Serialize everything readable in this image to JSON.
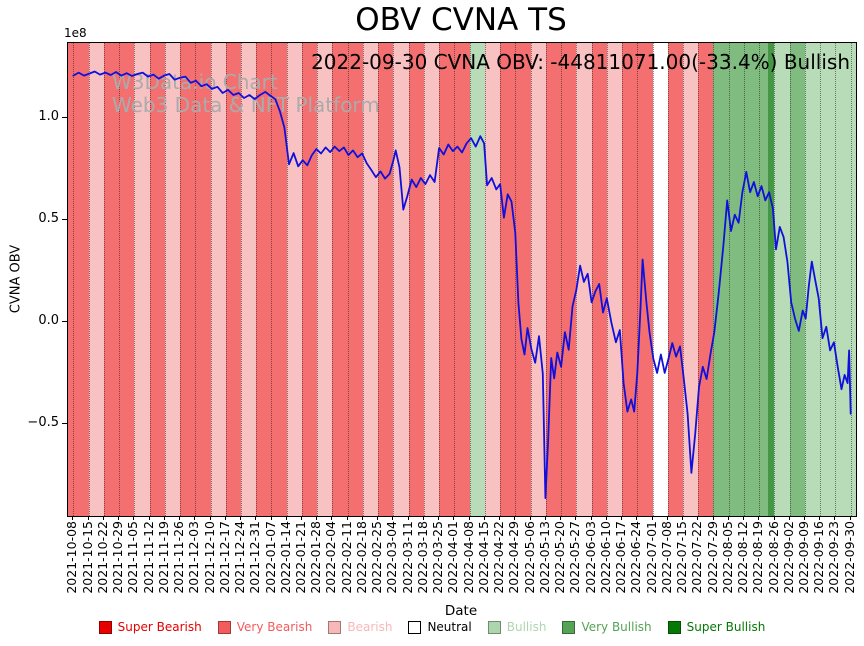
{
  "chart_data": {
    "type": "line",
    "title": "OBV CVNA TS",
    "annotation": "2022-09-30 CVNA OBV: -44811071.00(-33.4%) Bullish",
    "watermark": [
      "W3Data.io Chart",
      "Web3 Data & NFT Platform"
    ],
    "xlabel": "Date",
    "ylabel": "CVNA OBV",
    "y_offset_label": "1e8",
    "line_color": "#1010dc",
    "xlim": [
      -0.35,
      51.35
    ],
    "ylim": [
      -0.95,
      1.37
    ],
    "yticks": [
      {
        "v": 1.0,
        "label": "1.0"
      },
      {
        "v": 0.5,
        "label": "0.5"
      },
      {
        "v": 0.0,
        "label": "0.0"
      },
      {
        "v": -0.5,
        "label": "−0.5"
      }
    ],
    "x_tick_labels": [
      "2021-10-08",
      "2021-10-15",
      "2021-10-22",
      "2021-10-29",
      "2021-11-05",
      "2021-11-12",
      "2021-11-19",
      "2021-11-26",
      "2021-12-03",
      "2021-12-10",
      "2021-12-17",
      "2021-12-24",
      "2021-12-31",
      "2022-01-07",
      "2022-01-14",
      "2022-01-21",
      "2022-01-28",
      "2022-02-04",
      "2022-02-11",
      "2022-02-18",
      "2022-02-25",
      "2022-03-04",
      "2022-03-11",
      "2022-03-18",
      "2022-03-25",
      "2022-04-01",
      "2022-04-08",
      "2022-04-15",
      "2022-04-22",
      "2022-04-29",
      "2022-05-06",
      "2022-05-13",
      "2022-05-20",
      "2022-05-27",
      "2022-06-03",
      "2022-06-10",
      "2022-06-17",
      "2022-06-24",
      "2022-07-01",
      "2022-07-08",
      "2022-07-15",
      "2022-07-22",
      "2022-07-29",
      "2022-08-05",
      "2022-08-12",
      "2022-08-19",
      "2022-08-26",
      "2022-09-02",
      "2022-09-09",
      "2022-09-16",
      "2022-09-23",
      "2022-09-30"
    ],
    "band_colors": {
      "vb": "#f47070",
      "b": "#f9c2c2",
      "n": "#ffffff",
      "bu": "#b7dcb7",
      "vbu": "#80bc80",
      "sbu": "#459745"
    },
    "bands": {
      "weekly": [
        "vb",
        "b",
        "vb",
        "vb",
        "b",
        "vb",
        "b",
        "vb",
        "vb",
        "b",
        "vb",
        "b",
        "vb",
        "vb",
        "b",
        "vb",
        "b",
        "vb",
        "vb",
        "b",
        "vb",
        "b",
        "vb",
        "b",
        "vb",
        "vb",
        "bu",
        "b",
        "vb",
        "vb",
        "b",
        "vb",
        "vb",
        "b",
        "vb",
        "b",
        "vb",
        "vb",
        "n",
        "vb",
        "b",
        "vb",
        "vbu",
        "vbu",
        "vbu",
        "vbu",
        "bu",
        "vbu",
        "bu",
        "bu",
        "bu"
      ],
      "extra": [
        {
          "x0": -0.35,
          "x1": 0,
          "c": "vb"
        },
        {
          "x0": 51,
          "x1": 51.35,
          "c": "bu"
        },
        {
          "x0": 45.6,
          "x1": 46.0,
          "c": "sbu"
        }
      ]
    },
    "points": [
      [
        0,
        1.21
      ],
      [
        0.35,
        1.225
      ],
      [
        0.7,
        1.21
      ],
      [
        1.05,
        1.22
      ],
      [
        1.4,
        1.23
      ],
      [
        1.75,
        1.215
      ],
      [
        2.1,
        1.225
      ],
      [
        2.45,
        1.213
      ],
      [
        2.8,
        1.228
      ],
      [
        3.15,
        1.21
      ],
      [
        3.5,
        1.222
      ],
      [
        3.85,
        1.208
      ],
      [
        4.2,
        1.218
      ],
      [
        4.55,
        1.225
      ],
      [
        4.9,
        1.205
      ],
      [
        5.25,
        1.215
      ],
      [
        5.6,
        1.195
      ],
      [
        5.95,
        1.21
      ],
      [
        6.3,
        1.218
      ],
      [
        6.65,
        1.19
      ],
      [
        7,
        1.2
      ],
      [
        7.35,
        1.205
      ],
      [
        7.7,
        1.175
      ],
      [
        8.05,
        1.185
      ],
      [
        8.4,
        1.158
      ],
      [
        8.75,
        1.168
      ],
      [
        9.1,
        1.145
      ],
      [
        9.45,
        1.155
      ],
      [
        9.8,
        1.125
      ],
      [
        10.15,
        1.14
      ],
      [
        10.5,
        1.115
      ],
      [
        10.85,
        1.125
      ],
      [
        11.2,
        1.1
      ],
      [
        11.55,
        1.115
      ],
      [
        11.9,
        1.095
      ],
      [
        12.25,
        1.115
      ],
      [
        12.6,
        1.13
      ],
      [
        12.95,
        1.11
      ],
      [
        13.25,
        1.095
      ],
      [
        13.55,
        1.035
      ],
      [
        13.85,
        0.955
      ],
      [
        14.15,
        0.775
      ],
      [
        14.45,
        0.83
      ],
      [
        14.75,
        0.765
      ],
      [
        15.05,
        0.795
      ],
      [
        15.35,
        0.77
      ],
      [
        15.65,
        0.82
      ],
      [
        15.95,
        0.85
      ],
      [
        16.25,
        0.828
      ],
      [
        16.55,
        0.858
      ],
      [
        16.85,
        0.835
      ],
      [
        17.15,
        0.862
      ],
      [
        17.45,
        0.84
      ],
      [
        17.75,
        0.858
      ],
      [
        18.05,
        0.82
      ],
      [
        18.35,
        0.843
      ],
      [
        18.65,
        0.81
      ],
      [
        18.95,
        0.828
      ],
      [
        19.25,
        0.78
      ],
      [
        19.55,
        0.747
      ],
      [
        19.85,
        0.712
      ],
      [
        20.15,
        0.74
      ],
      [
        20.45,
        0.705
      ],
      [
        20.75,
        0.728
      ],
      [
        21,
        0.795
      ],
      [
        21.15,
        0.843
      ],
      [
        21.4,
        0.76
      ],
      [
        21.65,
        0.553
      ],
      [
        21.9,
        0.615
      ],
      [
        22.2,
        0.7
      ],
      [
        22.5,
        0.663
      ],
      [
        22.8,
        0.708
      ],
      [
        23.1,
        0.678
      ],
      [
        23.4,
        0.722
      ],
      [
        23.7,
        0.688
      ],
      [
        24,
        0.855
      ],
      [
        24.3,
        0.823
      ],
      [
        24.6,
        0.872
      ],
      [
        24.9,
        0.84
      ],
      [
        25.2,
        0.862
      ],
      [
        25.5,
        0.833
      ],
      [
        25.8,
        0.878
      ],
      [
        26.1,
        0.903
      ],
      [
        26.4,
        0.862
      ],
      [
        26.7,
        0.913
      ],
      [
        26.95,
        0.878
      ],
      [
        27.15,
        0.672
      ],
      [
        27.45,
        0.708
      ],
      [
        27.75,
        0.652
      ],
      [
        28,
        0.678
      ],
      [
        28.25,
        0.513
      ],
      [
        28.5,
        0.628
      ],
      [
        28.75,
        0.592
      ],
      [
        29,
        0.438
      ],
      [
        29.2,
        0.095
      ],
      [
        29.4,
        -0.082
      ],
      [
        29.6,
        -0.158
      ],
      [
        29.8,
        -0.028
      ],
      [
        30.05,
        -0.132
      ],
      [
        30.3,
        -0.198
      ],
      [
        30.55,
        -0.068
      ],
      [
        30.8,
        -0.252
      ],
      [
        30.97,
        -0.862
      ],
      [
        31.15,
        -0.585
      ],
      [
        31.35,
        -0.175
      ],
      [
        31.55,
        -0.275
      ],
      [
        31.75,
        -0.148
      ],
      [
        32,
        -0.218
      ],
      [
        32.25,
        -0.048
      ],
      [
        32.5,
        -0.135
      ],
      [
        32.75,
        0.078
      ],
      [
        33,
        0.158
      ],
      [
        33.25,
        0.278
      ],
      [
        33.5,
        0.198
      ],
      [
        33.75,
        0.238
      ],
      [
        34,
        0.098
      ],
      [
        34.25,
        0.152
      ],
      [
        34.5,
        0.188
      ],
      [
        34.75,
        0.048
      ],
      [
        35,
        0.118
      ],
      [
        35.3,
        -0.002
      ],
      [
        35.6,
        -0.098
      ],
      [
        35.85,
        -0.038
      ],
      [
        36.1,
        -0.298
      ],
      [
        36.35,
        -0.438
      ],
      [
        36.6,
        -0.378
      ],
      [
        36.8,
        -0.438
      ],
      [
        37,
        -0.248
      ],
      [
        37.2,
        0.048
      ],
      [
        37.35,
        0.308
      ],
      [
        37.6,
        0.098
      ],
      [
        37.8,
        -0.048
      ],
      [
        38.05,
        -0.178
      ],
      [
        38.3,
        -0.248
      ],
      [
        38.55,
        -0.158
      ],
      [
        38.8,
        -0.248
      ],
      [
        39.05,
        -0.178
      ],
      [
        39.3,
        -0.102
      ],
      [
        39.55,
        -0.168
      ],
      [
        39.8,
        -0.118
      ],
      [
        40.05,
        -0.278
      ],
      [
        40.3,
        -0.448
      ],
      [
        40.55,
        -0.738
      ],
      [
        40.8,
        -0.548
      ],
      [
        41.05,
        -0.318
      ],
      [
        41.3,
        -0.218
      ],
      [
        41.55,
        -0.278
      ],
      [
        41.8,
        -0.158
      ],
      [
        42.05,
        -0.048
      ],
      [
        42.35,
        0.148
      ],
      [
        42.65,
        0.378
      ],
      [
        42.9,
        0.598
      ],
      [
        43.15,
        0.448
      ],
      [
        43.4,
        0.528
      ],
      [
        43.65,
        0.488
      ],
      [
        43.9,
        0.638
      ],
      [
        44.15,
        0.738
      ],
      [
        44.4,
        0.638
      ],
      [
        44.65,
        0.688
      ],
      [
        44.9,
        0.618
      ],
      [
        45.15,
        0.668
      ],
      [
        45.4,
        0.598
      ],
      [
        45.65,
        0.638
      ],
      [
        45.9,
        0.558
      ],
      [
        46.1,
        0.358
      ],
      [
        46.35,
        0.468
      ],
      [
        46.6,
        0.418
      ],
      [
        46.85,
        0.298
      ],
      [
        47.1,
        0.098
      ],
      [
        47.35,
        0.018
      ],
      [
        47.6,
        -0.042
      ],
      [
        47.85,
        0.058
      ],
      [
        48.05,
        0.018
      ],
      [
        48.25,
        0.178
      ],
      [
        48.45,
        0.298
      ],
      [
        48.65,
        0.218
      ],
      [
        48.9,
        0.118
      ],
      [
        49.15,
        -0.078
      ],
      [
        49.4,
        -0.022
      ],
      [
        49.65,
        -0.138
      ],
      [
        49.9,
        -0.098
      ],
      [
        50.15,
        -0.218
      ],
      [
        50.4,
        -0.328
      ],
      [
        50.6,
        -0.258
      ],
      [
        50.8,
        -0.298
      ],
      [
        50.9,
        -0.138
      ],
      [
        51,
        -0.448
      ]
    ],
    "legend": [
      {
        "label": "Super Bearish",
        "swatch": "#e60000",
        "text": "#e60000"
      },
      {
        "label": "Very Bearish",
        "swatch": "#f25c5c",
        "text": "#f25c5c"
      },
      {
        "label": "Bearish",
        "swatch": "#f8b8b8",
        "text": "#f8b8b8"
      },
      {
        "label": "Neutral",
        "swatch": "#ffffff",
        "text": "#000000",
        "edge": "#000000"
      },
      {
        "label": "Bullish",
        "swatch": "#aed6ae",
        "text": "#aed6ae"
      },
      {
        "label": "Very Bullish",
        "swatch": "#55a355",
        "text": "#55a355"
      },
      {
        "label": "Super Bullish",
        "swatch": "#067806",
        "text": "#067806"
      }
    ]
  }
}
